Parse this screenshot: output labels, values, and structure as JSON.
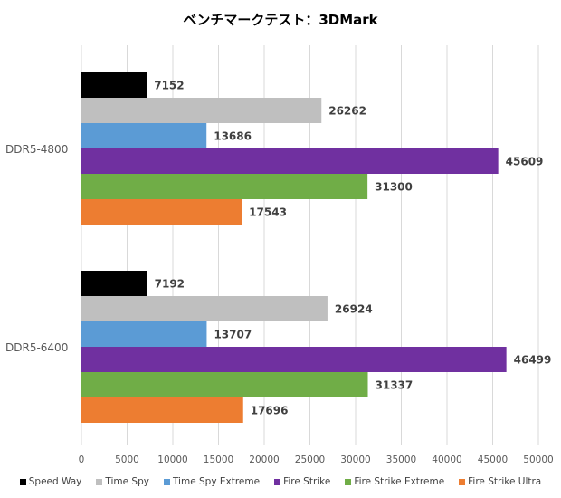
{
  "chart_data": {
    "type": "bar",
    "orientation": "horizontal",
    "title": "ベンチマークテスト：3DMark",
    "xlabel": "",
    "ylabel": "",
    "xlim": [
      0,
      50000
    ],
    "x_ticks": [
      0,
      5000,
      10000,
      15000,
      20000,
      25000,
      30000,
      35000,
      40000,
      45000,
      50000
    ],
    "x_tick_labels": [
      "0",
      "5000",
      "10000",
      "15000",
      "20000",
      "25000",
      "30000",
      "35000",
      "40000",
      "45000",
      "50000"
    ],
    "grid": true,
    "legend_position": "bottom",
    "categories": [
      "DDR5-4800",
      "DDR5-6400"
    ],
    "series": [
      {
        "name": "Speed Way",
        "color": "#000000",
        "values": [
          7152,
          7192
        ],
        "labels": [
          "7152",
          "7192"
        ]
      },
      {
        "name": "Time Spy",
        "color": "#bfbfbf",
        "values": [
          26262,
          26924
        ],
        "labels": [
          "26262",
          "26924"
        ]
      },
      {
        "name": "Time Spy Extreme",
        "color": "#5b9bd5",
        "values": [
          13686,
          13707
        ],
        "labels": [
          "13686",
          "13707"
        ]
      },
      {
        "name": "Fire Strike",
        "color": "#7030a0",
        "values": [
          45609,
          46499
        ],
        "labels": [
          "45609",
          "46499"
        ]
      },
      {
        "name": "Fire Strike Extreme",
        "color": "#70ad47",
        "values": [
          31300,
          31337
        ],
        "labels": [
          "31300",
          "31337"
        ]
      },
      {
        "name": "Fire Strike Ultra",
        "color": "#ed7d31",
        "values": [
          17543,
          17696
        ],
        "labels": [
          "17543",
          "17696"
        ]
      }
    ]
  }
}
